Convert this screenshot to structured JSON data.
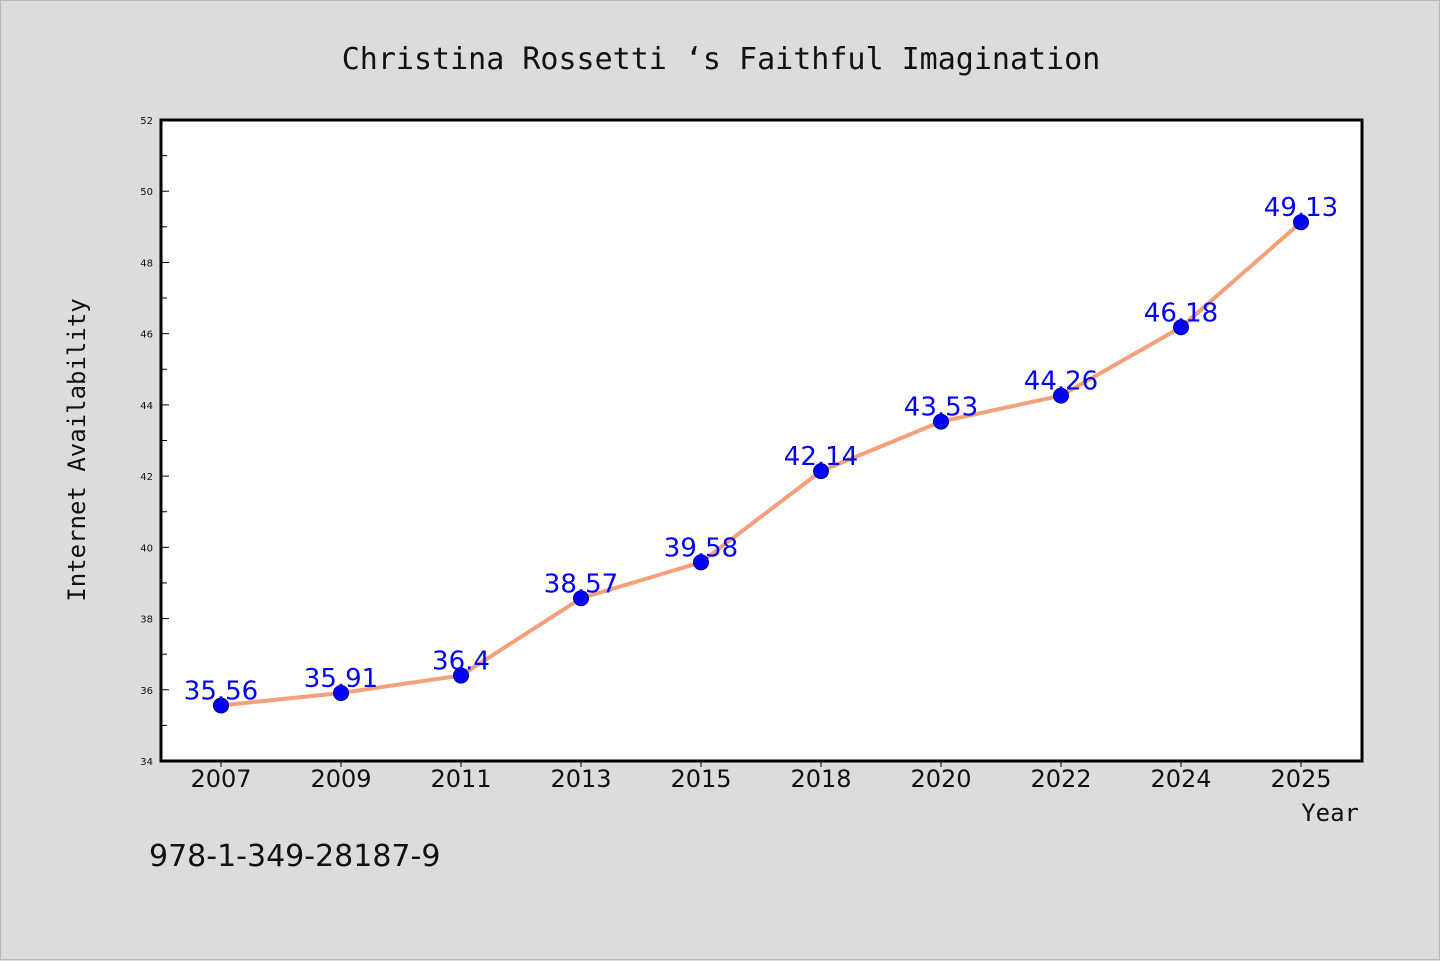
{
  "chart_data": {
    "type": "line",
    "title": "Christina Rossetti ‘s Faithful Imagination",
    "xlabel": "Year",
    "ylabel": "Internet Availability",
    "categories": [
      "2007",
      "2009",
      "2011",
      "2013",
      "2015",
      "2018",
      "2020",
      "2022",
      "2024",
      "2025"
    ],
    "series": [
      {
        "values": [
          35.56,
          35.91,
          36.4,
          38.57,
          39.58,
          42.14,
          43.53,
          44.26,
          46.18,
          49.13
        ]
      }
    ],
    "data_labels": [
      "35.56",
      "35.91",
      "36.4",
      "38.57",
      "39.58",
      "42.14",
      "43.53",
      "44.26",
      "46.18",
      "49.13"
    ],
    "ylim": [
      34,
      52
    ],
    "yticks": [
      34,
      36,
      38,
      40,
      42,
      44,
      46,
      48,
      50,
      52
    ],
    "grid": false,
    "colors": {
      "line": "#f4a07a",
      "marker": "#0000ff",
      "label": "#0000ff",
      "background": "#dcdcdc",
      "plot_bg": "#ffffff"
    }
  },
  "footer_text": "978-1-349-28187-9"
}
